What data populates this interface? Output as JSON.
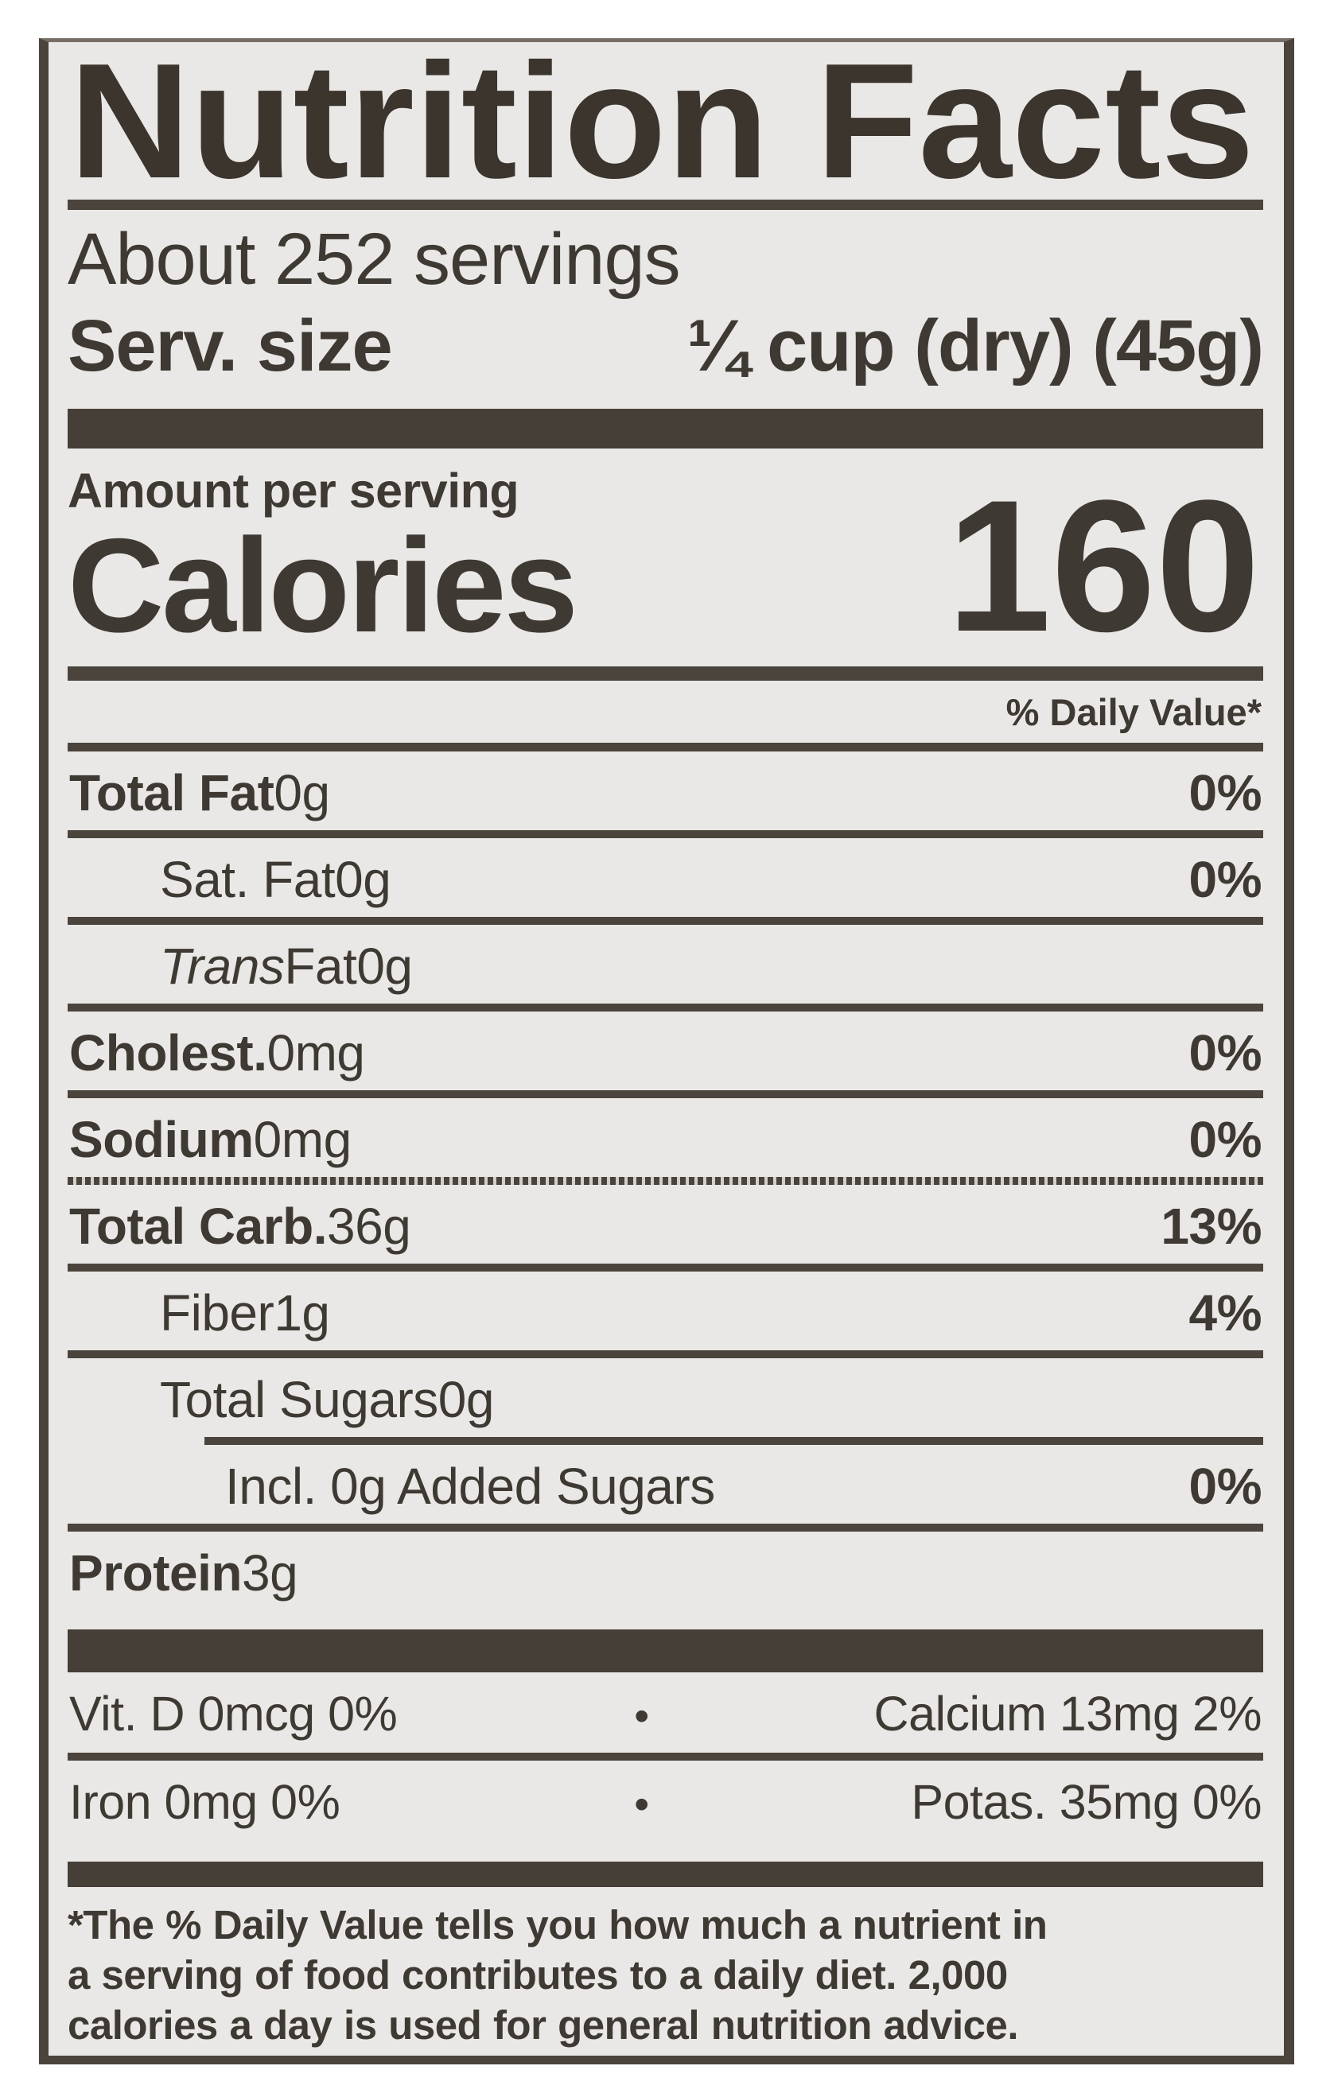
{
  "colors": {
    "ink": "#3e3932",
    "bar": "#453f38",
    "paper": "#eae8e6",
    "page_bg": "#ffffff"
  },
  "label": {
    "title": "Nutrition Facts",
    "servings_statement": "About 252 servings",
    "serving_size": {
      "label": "Serv. size",
      "value": "¼ cup (dry) (45g)"
    },
    "amount_per_serving": "Amount per serving",
    "calories_label": "Calories",
    "calories_value": "160",
    "daily_value_header": "% Daily Value*",
    "nutrient_rows": [
      {
        "name": "Total Fat ",
        "amount": "0g",
        "dv": "0%"
      },
      {
        "name": "Sat. Fat ",
        "amount": "0g",
        "dv": "0%"
      },
      {
        "italic": "Trans ",
        "name": "Fat ",
        "amount": "0g",
        "dv": ""
      },
      {
        "name": "Cholest. ",
        "amount": "0mg",
        "dv": "0%"
      },
      {
        "name": "Sodium ",
        "amount": "0mg",
        "dv": "0%"
      },
      {
        "name": "Total Carb. ",
        "amount": "36g",
        "dv": "13%"
      },
      {
        "name": "Fiber ",
        "amount": "1g",
        "dv": "4%"
      },
      {
        "name": "Total Sugars ",
        "amount": "0g",
        "dv": ""
      },
      {
        "name": "Incl. 0g Added Sugars",
        "amount": "",
        "dv": "0%"
      },
      {
        "name": "Protein ",
        "amount": "3g",
        "dv": ""
      }
    ],
    "vitamin_rows": [
      {
        "left": "Vit. D 0mcg 0%",
        "bullet": "•",
        "right": "Calcium 13mg 2%"
      },
      {
        "left": "Iron 0mg 0%",
        "bullet": "•",
        "right": "Potas. 35mg 0%"
      }
    ],
    "footnote_lines": [
      "*The % Daily Value tells you how much a nutrient in",
      "a serving of food contributes to a daily diet. 2,000",
      "calories a day is used for general nutrition advice."
    ]
  }
}
